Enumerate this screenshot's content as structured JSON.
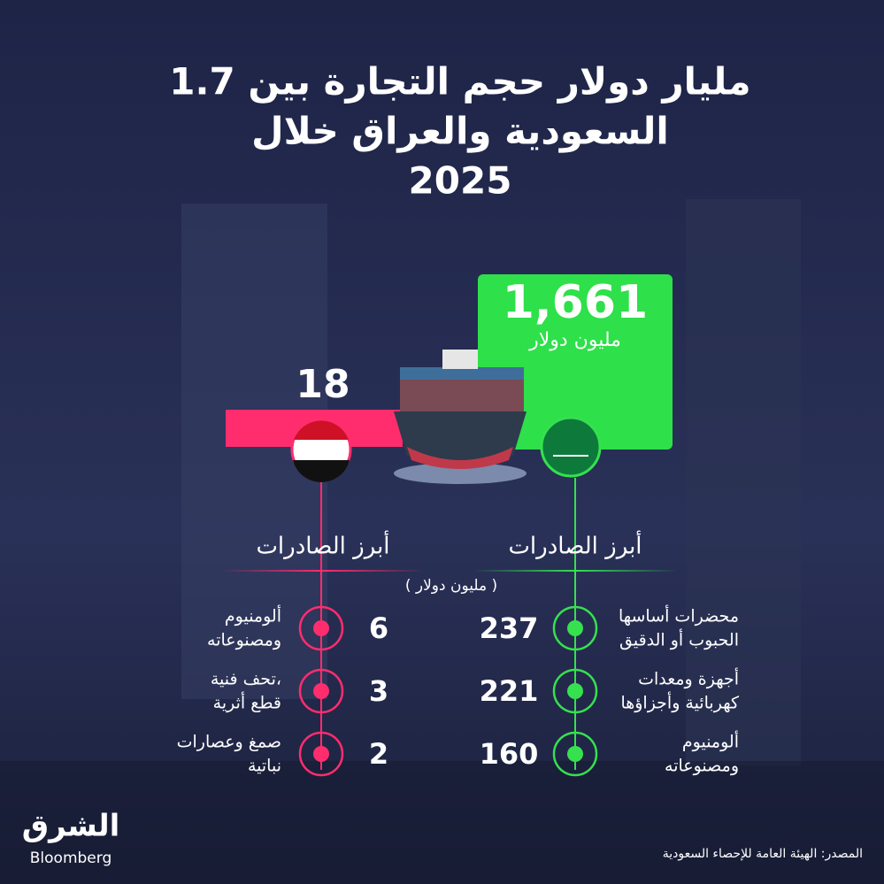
{
  "title": {
    "lines": [
      "1.7 مليار دولار حجم التجارة بين",
      "السعودية والعراق خلال",
      "2025"
    ]
  },
  "saudi": {
    "value": 1661,
    "value_label": "1,661",
    "unit": "مليون دولار",
    "exports_title": "أبرز الصادرات",
    "items": [
      {
        "value": 237,
        "lines": [
          "محضرات أساسها",
          "الحبوب أو الدقيق"
        ]
      },
      {
        "value": 221,
        "lines": [
          "أجهزة ومعدات",
          "كهربائية وأجزاؤها"
        ]
      },
      {
        "value": 160,
        "lines": [
          "ألومنيوم",
          "ومصنوعاته"
        ]
      }
    ]
  },
  "iraq": {
    "value": 18,
    "exports_title": "أبرز الصادرات",
    "items": [
      {
        "value": 6,
        "lines": [
          "ألومنيوم",
          "ومصنوعاته"
        ]
      },
      {
        "value": 3,
        "lines": [
          "تحف فنية،",
          "قطع أثرية"
        ]
      },
      {
        "value": 2,
        "lines": [
          "صمغ وعصارات",
          "نباتية"
        ]
      }
    ]
  },
  "units_note": "( مليون دولار )",
  "source": "المصدر: الهيئة العامة للإحصاء السعودية",
  "logo": {
    "arabic": "الشرق",
    "english": "Bloomberg"
  }
}
